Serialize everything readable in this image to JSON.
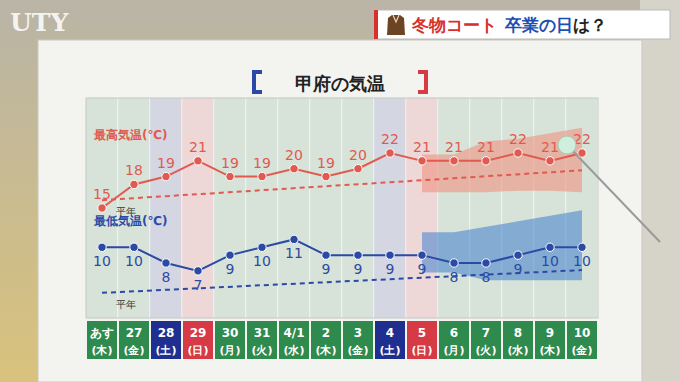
{
  "logo": "UTY",
  "banner": [
    {
      "text": "冬物コート",
      "color": "#d8302c"
    },
    {
      "text": "卒業の日",
      "color": "#1d4fb3"
    },
    {
      "text": "は？",
      "color": "#222222"
    }
  ],
  "chart_data": {
    "type": "line",
    "title": "甲府の気温",
    "categories": [
      "あす",
      "27",
      "28",
      "29",
      "30",
      "31",
      "4/1",
      "2",
      "3",
      "4",
      "5",
      "6",
      "7",
      "8",
      "9",
      "10"
    ],
    "category_weekdays": [
      "(木)",
      "(金)",
      "(土)",
      "(日)",
      "(月)",
      "(火)",
      "(水)",
      "(木)",
      "(金)",
      "(土)",
      "(日)",
      "(月)",
      "(火)",
      "(水)",
      "(木)",
      "(金)"
    ],
    "category_colors": [
      "#2f8a4e",
      "#2f8a4e",
      "#1f2f8f",
      "#d63a45",
      "#2f8a4e",
      "#2f8a4e",
      "#2f8a4e",
      "#2f8a4e",
      "#2f8a4e",
      "#1f2f8f",
      "#d63a45",
      "#2f8a4e",
      "#2f8a4e",
      "#2f8a4e",
      "#2f8a4e",
      "#2f8a4e"
    ],
    "series": [
      {
        "name": "最高気温(℃)",
        "color": "#e05a50",
        "marker": "circle",
        "line_style": "solid",
        "values": [
          15,
          18,
          19,
          21,
          19,
          19,
          20,
          19,
          20,
          22,
          21,
          21,
          21,
          22,
          21,
          22
        ]
      },
      {
        "name": "最低気温(℃)",
        "color": "#2b4aa6",
        "marker": "circle",
        "line_style": "solid",
        "values": [
          10,
          10,
          8,
          7,
          9,
          10,
          11,
          9,
          9,
          9,
          9,
          8,
          8,
          9,
          10,
          10
        ]
      }
    ],
    "normals": [
      {
        "name": "平年",
        "color": "#e05a50",
        "line_style": "dashed",
        "start": 16.0,
        "end": 19.8
      },
      {
        "name": "平年",
        "color": "#2b4aa6",
        "line_style": "dashed",
        "start": 4.2,
        "end": 7.1
      }
    ],
    "bands": [
      {
        "color": "#f08a78",
        "upper": [
          null,
          null,
          null,
          null,
          null,
          null,
          null,
          null,
          null,
          null,
          21.8,
          21.8,
          23.5,
          23.8,
          24.5,
          25.2
        ],
        "lower": [
          null,
          null,
          null,
          null,
          null,
          null,
          null,
          null,
          null,
          null,
          17.0,
          17.0,
          17.0,
          17.2,
          17.2,
          17.0
        ]
      },
      {
        "color": "#3f7fd0",
        "upper": [
          null,
          null,
          null,
          null,
          null,
          null,
          null,
          null,
          null,
          null,
          11.9,
          11.9,
          12.6,
          13.3,
          14.0,
          14.7
        ],
        "lower": [
          null,
          null,
          null,
          null,
          null,
          null,
          null,
          null,
          null,
          null,
          6.8,
          6.8,
          5.8,
          5.8,
          5.8,
          5.8
        ]
      }
    ],
    "ylim": [
      1,
      29
    ],
    "yticks": [],
    "tick_labels": "x",
    "data_labels": true,
    "grid": false
  }
}
